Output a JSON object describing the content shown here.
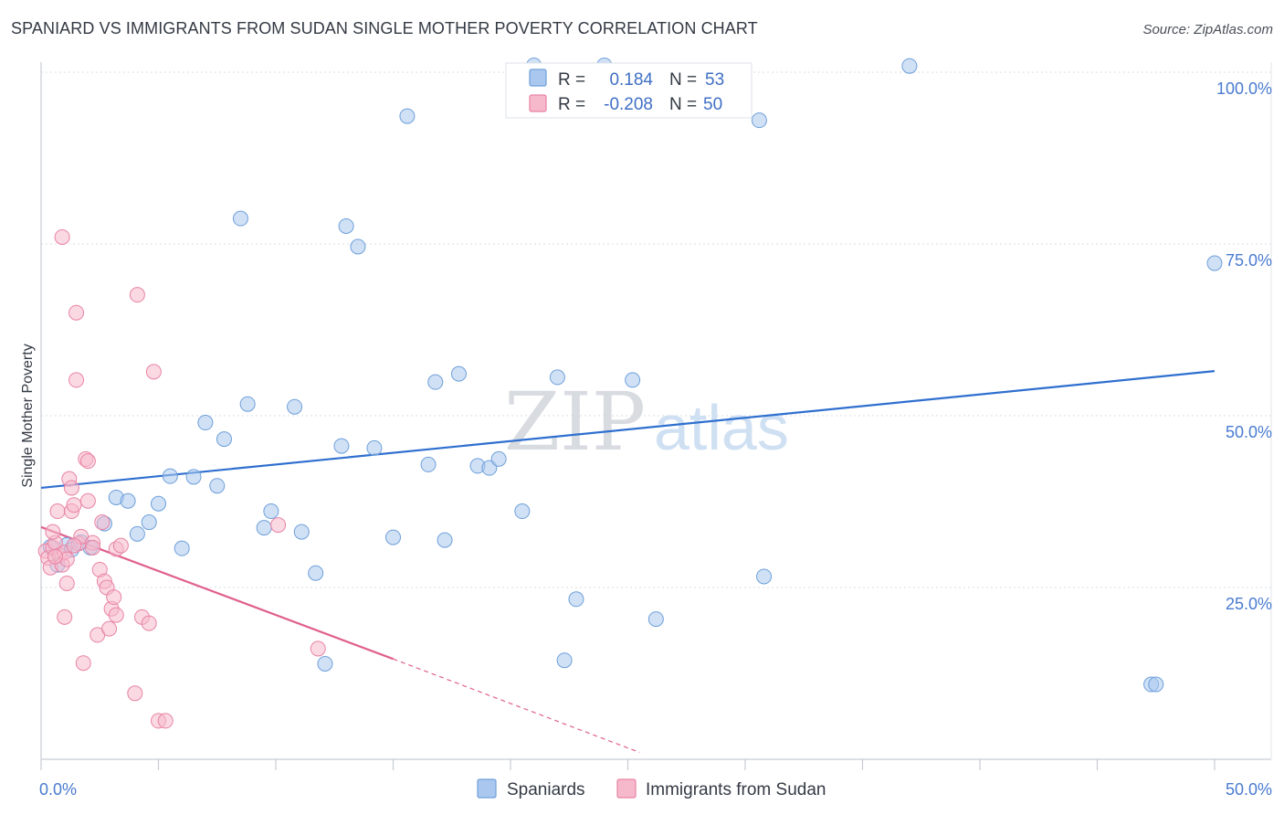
{
  "header": {
    "title": "SPANIARD VS IMMIGRANTS FROM SUDAN SINGLE MOTHER POVERTY CORRELATION CHART",
    "source": "Source: ZipAtlas.com"
  },
  "watermark": {
    "zip": "ZIP",
    "atlas": "atlas"
  },
  "legend_box": {
    "rows": [
      {
        "r_label": "R =",
        "r_value": "0.184",
        "n_label": "N =",
        "n_value": "53",
        "color": "#aac8ef"
      },
      {
        "r_label": "R =",
        "r_value": "-0.208",
        "n_label": "N =",
        "n_value": "50",
        "color": "#f6b9cc"
      }
    ]
  },
  "bottom_legend": [
    {
      "label": "Spaniards",
      "color": "#aac8ef"
    },
    {
      "label": "Immigrants from Sudan",
      "color": "#f6b9cc"
    }
  ],
  "chart_data": {
    "type": "scatter",
    "title": "SPANIARD VS IMMIGRANTS FROM SUDAN SINGLE MOTHER POVERTY CORRELATION CHART",
    "xlabel": "",
    "ylabel": "Single Mother Poverty",
    "xlim": [
      0,
      50
    ],
    "ylim": [
      0,
      100
    ],
    "x_tick_labels": [
      "0.0%",
      "50.0%"
    ],
    "y_tick_labels": [
      {
        "value": 100,
        "label": "100.0%"
      },
      {
        "value": 75,
        "label": "75.0%"
      },
      {
        "value": 50,
        "label": "50.0%"
      },
      {
        "value": 25,
        "label": "25.0%"
      }
    ],
    "grid": true,
    "series": [
      {
        "name": "Spaniards",
        "color": "#aac8ef",
        "edge": "#6e9fd9",
        "trend": {
          "x0": 0,
          "y0": 39.5,
          "x1": 50,
          "y1": 56.5,
          "color": "#2f6fcf"
        },
        "points": [
          [
            0.7,
            28.3
          ],
          [
            1.1,
            31.2
          ],
          [
            1.3,
            30.5
          ],
          [
            2.1,
            30.8
          ],
          [
            2.7,
            34.3
          ],
          [
            3.2,
            38.1
          ],
          [
            3.7,
            37.6
          ],
          [
            4.1,
            32.8
          ],
          [
            4.6,
            34.5
          ],
          [
            5.0,
            37.2
          ],
          [
            5.5,
            41.2
          ],
          [
            6.0,
            30.7
          ],
          [
            6.5,
            41.1
          ],
          [
            7.0,
            49.0
          ],
          [
            7.5,
            39.8
          ],
          [
            7.8,
            46.6
          ],
          [
            8.5,
            78.7
          ],
          [
            8.8,
            51.7
          ],
          [
            9.5,
            33.7
          ],
          [
            9.8,
            36.1
          ],
          [
            10.8,
            51.3
          ],
          [
            11.1,
            33.1
          ],
          [
            11.7,
            27.1
          ],
          [
            12.1,
            13.9
          ],
          [
            12.8,
            45.6
          ],
          [
            13.0,
            77.6
          ],
          [
            13.5,
            74.6
          ],
          [
            14.2,
            45.3
          ],
          [
            15.0,
            32.3
          ],
          [
            15.6,
            93.6
          ],
          [
            16.5,
            42.9
          ],
          [
            16.8,
            54.9
          ],
          [
            17.2,
            31.9
          ],
          [
            17.8,
            56.1
          ],
          [
            18.6,
            42.7
          ],
          [
            19.1,
            42.4
          ],
          [
            19.5,
            43.7
          ],
          [
            20.5,
            36.1
          ],
          [
            21.0,
            101.0
          ],
          [
            22.0,
            55.6
          ],
          [
            22.3,
            14.4
          ],
          [
            22.8,
            23.3
          ],
          [
            24.0,
            101.0
          ],
          [
            25.2,
            55.2
          ],
          [
            26.2,
            20.4
          ],
          [
            30.6,
            93.0
          ],
          [
            30.8,
            26.6
          ],
          [
            37.0,
            100.9
          ],
          [
            47.3,
            10.9
          ],
          [
            47.5,
            10.9
          ],
          [
            50.0,
            72.2
          ],
          [
            0.4,
            30.9
          ],
          [
            1.7,
            31.6
          ]
        ]
      },
      {
        "name": "Immigrants from Sudan",
        "color": "#f6b9cc",
        "edge": "#e983a4",
        "trend": {
          "x0": 0,
          "y0": 33.8,
          "x1": 15.0,
          "y1": 14.6,
          "color": "#e0608e"
        },
        "trend_dashed": {
          "x0": 15.0,
          "y0": 14.6,
          "x1": 25.5,
          "y1": 1.0
        },
        "points": [
          [
            0.2,
            30.3
          ],
          [
            0.3,
            29.3
          ],
          [
            0.4,
            27.9
          ],
          [
            0.5,
            30.8
          ],
          [
            0.6,
            31.5
          ],
          [
            0.7,
            36.1
          ],
          [
            0.8,
            29.7
          ],
          [
            0.9,
            28.3
          ],
          [
            1.0,
            30.1
          ],
          [
            1.1,
            29.1
          ],
          [
            0.5,
            33.1
          ],
          [
            0.6,
            29.5
          ],
          [
            0.9,
            76.0
          ],
          [
            1.0,
            20.7
          ],
          [
            1.1,
            25.6
          ],
          [
            1.2,
            40.8
          ],
          [
            1.3,
            36.1
          ],
          [
            1.3,
            39.5
          ],
          [
            1.4,
            37.0
          ],
          [
            1.5,
            65.0
          ],
          [
            1.5,
            55.2
          ],
          [
            1.6,
            31.4
          ],
          [
            1.7,
            32.4
          ],
          [
            1.8,
            14.0
          ],
          [
            1.4,
            31.1
          ],
          [
            1.9,
            43.7
          ],
          [
            2.0,
            43.4
          ],
          [
            2.0,
            37.6
          ],
          [
            2.2,
            31.5
          ],
          [
            2.2,
            30.8
          ],
          [
            2.4,
            18.1
          ],
          [
            2.5,
            27.6
          ],
          [
            2.6,
            34.5
          ],
          [
            2.7,
            25.9
          ],
          [
            2.8,
            25.0
          ],
          [
            2.9,
            19.0
          ],
          [
            3.0,
            21.9
          ],
          [
            3.1,
            23.6
          ],
          [
            3.2,
            21.0
          ],
          [
            3.2,
            30.6
          ],
          [
            3.4,
            31.1
          ],
          [
            4.1,
            67.6
          ],
          [
            4.0,
            9.6
          ],
          [
            4.3,
            20.7
          ],
          [
            4.6,
            19.8
          ],
          [
            4.8,
            56.4
          ],
          [
            5.0,
            5.6
          ],
          [
            5.3,
            5.6
          ],
          [
            10.1,
            34.1
          ],
          [
            11.8,
            16.1
          ]
        ]
      }
    ]
  }
}
